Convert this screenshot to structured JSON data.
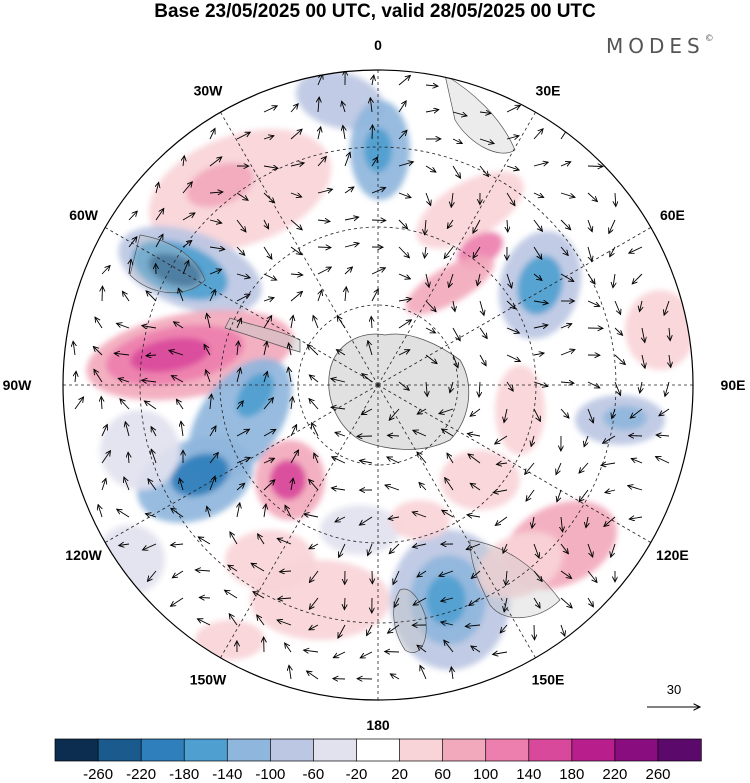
{
  "title": "Base 23/05/2025 00 UTC, valid 28/05/2025 00 UTC",
  "brand": {
    "name": "MODES",
    "mark": "©"
  },
  "map": {
    "projection": "south-polar-stereographic",
    "longitude_labels": [
      "0",
      "30E",
      "60E",
      "90E",
      "120E",
      "150E",
      "180",
      "150W",
      "120W",
      "90W",
      "60W",
      "30W"
    ],
    "grid": true
  },
  "reference_vector": {
    "value": "30"
  },
  "colorbar": {
    "ticks": [
      "-260",
      "-220",
      "-180",
      "-140",
      "-100",
      "-60",
      "-20",
      "20",
      "60",
      "100",
      "140",
      "180",
      "220",
      "260"
    ],
    "colors": [
      "#0c2d4f",
      "#1a5a8d",
      "#2e7fbc",
      "#4f9fd0",
      "#8fb6dc",
      "#bcc7e3",
      "#e2e2ef",
      "#ffffff",
      "#f8d4d8",
      "#f2a9bc",
      "#ed7fae",
      "#d9499b",
      "#b81f8d",
      "#8a0d7f",
      "#5b0a6b"
    ]
  },
  "colors": {
    "land": "#c8c8c8",
    "grid": "#222222",
    "vector": "#000000"
  }
}
